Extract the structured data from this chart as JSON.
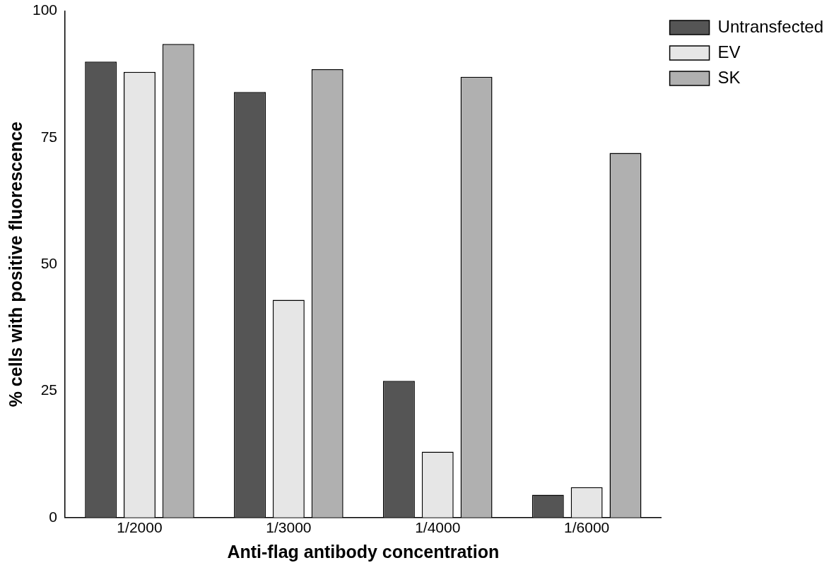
{
  "chart_data": {
    "type": "bar",
    "xlabel": "Anti-flag antibody concentration",
    "ylabel": "% cells with positive fluorescence",
    "categories": [
      "1/2000",
      "1/3000",
      "1/4000",
      "1/6000"
    ],
    "series": [
      {
        "name": "Untransfected",
        "color": "#555555",
        "values": [
          90,
          84,
          27,
          4.5
        ]
      },
      {
        "name": "EV",
        "color": "#e6e6e6",
        "values": [
          88,
          43,
          13,
          6
        ]
      },
      {
        "name": "SK",
        "color": "#b0b0b0",
        "values": [
          93.5,
          88.5,
          87,
          72
        ]
      }
    ],
    "ylim": [
      0,
      100
    ],
    "yticks": [
      0,
      25,
      50,
      75,
      100
    ],
    "grid": false,
    "legend": "top right"
  }
}
